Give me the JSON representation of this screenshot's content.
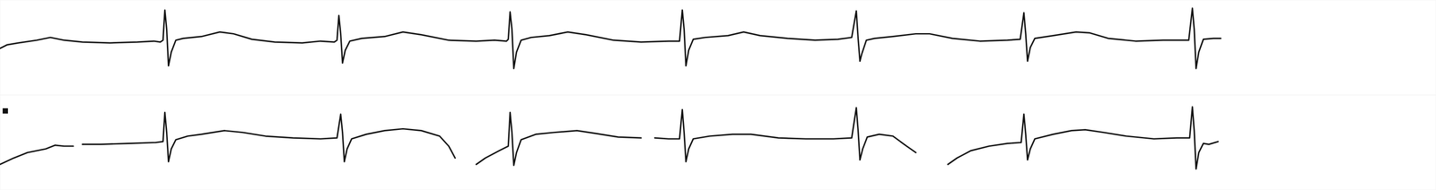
{
  "chart_data": [
    {
      "type": "line",
      "tick_labels": false,
      "grid": false,
      "xlim": [
        0,
        1568
      ],
      "ylim": [
        -57,
        47
      ],
      "series": [
        {
          "color": "#111111",
          "line_style": "solid",
          "x": [
            0,
            8,
            20,
            40,
            55,
            70,
            90,
            120,
            150,
            168,
            175,
            178,
            180,
            182,
            184,
            187,
            192,
            200,
            220,
            240,
            255,
            275,
            300,
            330,
            350,
            365,
            368,
            370,
            372,
            374,
            377,
            382,
            395,
            420,
            440,
            460,
            490,
            520,
            540,
            553,
            555,
            557,
            559,
            561,
            564,
            569,
            580,
            600,
            620,
            640,
            670,
            700,
            730,
            742,
            745,
            747,
            749,
            752,
            757,
            770,
            795,
            812,
            830,
            860,
            890,
            915,
            930,
            935,
            937,
            939,
            941,
            946,
            955,
            975,
            1000,
            1015,
            1040,
            1070,
            1100,
            1114,
            1118,
            1120,
            1122,
            1125,
            1130,
            1150,
            1175,
            1190,
            1210,
            1240,
            1270,
            1298,
            1302,
            1304,
            1306,
            1309,
            1314,
            1325,
            1333
          ],
          "values": [
            -6,
            -2,
            0,
            3,
            6,
            3,
            1,
            0,
            1,
            2,
            1,
            3,
            36,
            15,
            -25,
            -10,
            3,
            5,
            7,
            12,
            10,
            4,
            1,
            0,
            2,
            1,
            3,
            30,
            10,
            -22,
            -8,
            2,
            5,
            7,
            12,
            9,
            3,
            2,
            3,
            2,
            4,
            34,
            15,
            -28,
            -10,
            3,
            6,
            8,
            12,
            9,
            3,
            1,
            2,
            2,
            36,
            15,
            -25,
            -8,
            4,
            6,
            8,
            12,
            8,
            5,
            3,
            4,
            6,
            35,
            5,
            -20,
            -12,
            3,
            5,
            7,
            10,
            10,
            5,
            2,
            3,
            4,
            33,
            10,
            -20,
            -5,
            5,
            8,
            12,
            11,
            5,
            2,
            3,
            3,
            38,
            15,
            -28,
            -10,
            4,
            5,
            5
          ]
        }
      ]
    },
    {
      "type": "line",
      "tick_labels": false,
      "grid": false,
      "xlim": [
        0,
        1568
      ],
      "ylim": [
        -53,
        51
      ],
      "series": [
        {
          "color": "#111111",
          "line_style": "solid",
          "x": [
            0,
            15,
            30,
            50,
            60,
            70,
            80,
            85,
            90,
            110,
            140,
            170,
            178,
            180,
            182,
            184,
            187,
            192,
            205,
            220,
            245,
            265,
            290,
            320,
            350,
            368,
            372,
            374,
            376,
            379,
            384,
            400,
            420,
            440,
            460,
            480,
            490,
            497,
            500,
            520,
            530,
            545,
            555,
            557,
            559,
            561,
            564,
            569,
            585,
            605,
            630,
            650,
            675,
            700,
            705,
            715,
            730,
            742,
            745,
            747,
            749,
            752,
            757,
            775,
            800,
            820,
            850,
            880,
            910,
            930,
            935,
            937,
            939,
            942,
            947,
            960,
            975,
            990,
            1000,
            1005,
            1035,
            1045,
            1060,
            1080,
            1100,
            1115,
            1118,
            1120,
            1122,
            1125,
            1130,
            1150,
            1170,
            1185,
            1205,
            1230,
            1260,
            1285,
            1299,
            1302,
            1304,
            1306,
            1309,
            1314,
            1320,
            1330
          ],
          "values": [
            -25,
            -18,
            -12,
            -8,
            -4,
            -5,
            -5,
            null,
            -3,
            -3,
            -2,
            -1,
            0,
            32,
            10,
            -22,
            -8,
            2,
            6,
            8,
            12,
            10,
            6,
            4,
            3,
            4,
            30,
            10,
            -22,
            -8,
            3,
            8,
            12,
            14,
            12,
            6,
            -5,
            -18,
            null,
            -25,
            -18,
            -10,
            -5,
            32,
            10,
            -26,
            -12,
            2,
            8,
            10,
            12,
            9,
            5,
            4,
            null,
            4,
            3,
            3,
            35,
            10,
            -22,
            -8,
            3,
            6,
            8,
            8,
            4,
            3,
            3,
            4,
            37,
            12,
            -20,
            -8,
            5,
            8,
            6,
            -5,
            -12,
            null,
            -25,
            -18,
            -10,
            -5,
            -2,
            -1,
            30,
            8,
            -20,
            -8,
            3,
            8,
            12,
            13,
            10,
            6,
            3,
            4,
            4,
            38,
            12,
            -30,
            -12,
            -2,
            -3,
            0
          ]
        }
      ]
    }
  ]
}
